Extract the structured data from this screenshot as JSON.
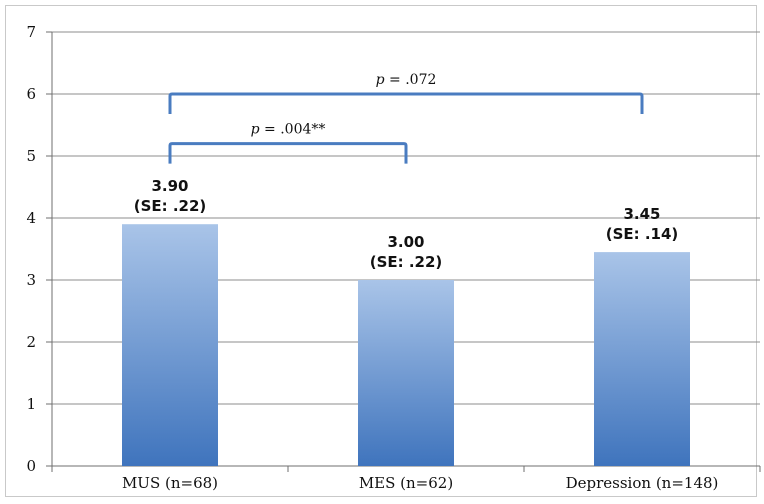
{
  "chart_data": {
    "type": "bar",
    "categories": [
      "MUS (n=68)",
      "MES (n=62)",
      "Depression (n=148)"
    ],
    "values": [
      3.9,
      3.0,
      3.45
    ],
    "value_labels": [
      "3.90",
      "3.00",
      "3.45"
    ],
    "se_labels": [
      "(SE: .22)",
      "(SE: .22)",
      "(SE: .14)"
    ],
    "title": "",
    "xlabel": "",
    "ylabel": "",
    "ylim": [
      0,
      7
    ],
    "yticks": [
      0,
      1,
      2,
      3,
      4,
      5,
      6,
      7
    ],
    "grid": true,
    "bar_color_top": "#a9c4e8",
    "bar_color_bottom": "#3f74bd",
    "bracket_color": "#4a7cc0",
    "comparisons": [
      {
        "from": 0,
        "to": 1,
        "level": 5.2,
        "p_symbol": "p",
        "p_text": " = .004**"
      },
      {
        "from": 0,
        "to": 2,
        "level": 6.0,
        "p_symbol": "p",
        "p_text": " = .072"
      }
    ]
  }
}
